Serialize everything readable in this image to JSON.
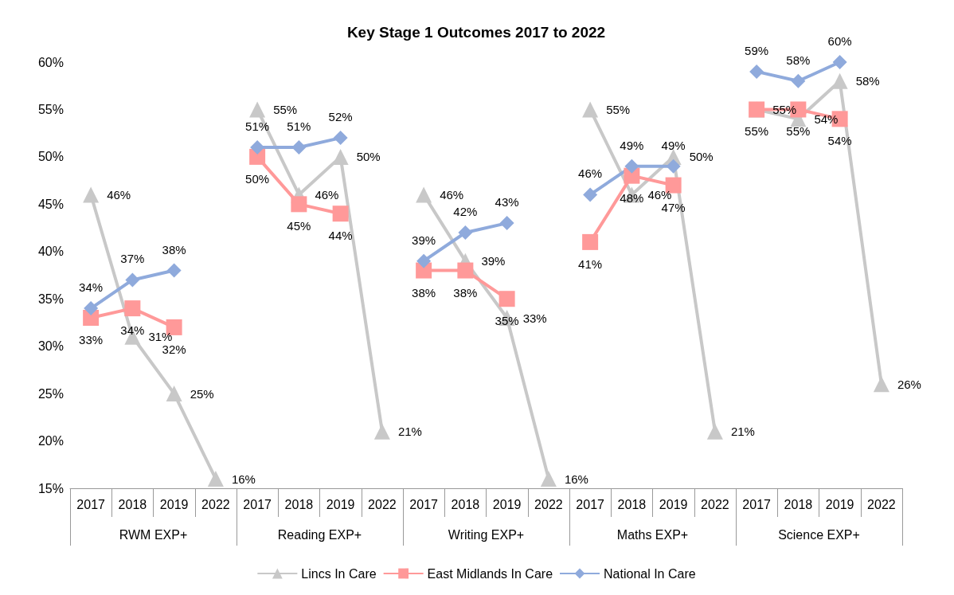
{
  "chart_data": {
    "type": "line",
    "title": "Key Stage 1 Outcomes 2017 to 2022",
    "categories": [
      "2017",
      "2018",
      "2019",
      "2022",
      "2017",
      "2018",
      "2019",
      "2022",
      "2017",
      "2018",
      "2019",
      "2022",
      "2017",
      "2018",
      "2019",
      "2022",
      "2017",
      "2018",
      "2019",
      "2022"
    ],
    "annotations": [
      "RWM EXP+",
      "Reading EXP+",
      "Writing EXP+",
      "Maths EXP+",
      "Science EXP+"
    ],
    "ylim": [
      15,
      60
    ],
    "yticks": [
      {
        "value": 15,
        "label": "15%"
      },
      {
        "value": 20,
        "label": "20%"
      },
      {
        "value": 25,
        "label": "25%"
      },
      {
        "value": 30,
        "label": "30%"
      },
      {
        "value": 35,
        "label": "35%"
      },
      {
        "value": 40,
        "label": "40%"
      },
      {
        "value": 45,
        "label": "45%"
      },
      {
        "value": 50,
        "label": "50%"
      },
      {
        "value": 55,
        "label": "55%"
      },
      {
        "value": 60,
        "label": "60%"
      }
    ],
    "grid": false,
    "legend": "bottom",
    "line_style": "solid",
    "series": [
      {
        "name": "Lincs In Care",
        "color": "#c8c8c8",
        "marker": "triangle",
        "values": [
          46,
          31,
          25,
          16,
          null,
          null,
          null,
          null,
          null,
          null,
          null,
          null,
          null,
          null,
          null,
          null,
          null,
          null,
          null,
          null
        ],
        "value_labels": [
          "46%",
          "31%",
          "25%",
          "16%",
          null,
          null,
          null,
          null,
          null,
          null,
          null,
          null,
          null,
          null,
          null,
          null,
          null,
          null,
          null,
          null
        ]
      },
      {
        "color": "#c8c8c8",
        "marker": "triangle",
        "values": [
          null,
          null,
          null,
          null,
          55,
          46,
          50,
          21,
          null,
          null,
          null,
          null,
          null,
          null,
          null,
          null,
          null,
          null,
          null,
          null
        ],
        "value_labels": [
          null,
          null,
          null,
          null,
          "55%",
          "46%",
          "50%",
          "21%",
          null,
          null,
          null,
          null,
          null,
          null,
          null,
          null,
          null,
          null,
          null,
          null
        ]
      },
      {
        "color": "#c8c8c8",
        "marker": "triangle",
        "values": [
          null,
          null,
          null,
          null,
          null,
          null,
          null,
          null,
          46,
          39,
          33,
          16,
          null,
          null,
          null,
          null,
          null,
          null,
          null,
          null
        ],
        "value_labels": [
          null,
          null,
          null,
          null,
          null,
          null,
          null,
          null,
          "46%",
          "39%",
          "33%",
          "16%",
          null,
          null,
          null,
          null,
          null,
          null,
          null,
          null
        ]
      },
      {
        "color": "#c8c8c8",
        "marker": "triangle",
        "values": [
          null,
          null,
          null,
          null,
          null,
          null,
          null,
          null,
          null,
          null,
          null,
          null,
          55,
          46,
          50,
          21,
          null,
          null,
          null,
          null
        ],
        "value_labels": [
          null,
          null,
          null,
          null,
          null,
          null,
          null,
          null,
          null,
          null,
          null,
          null,
          "55%",
          "46%",
          "50%",
          "21%",
          null,
          null,
          null,
          null
        ]
      },
      {
        "color": "#c8c8c8",
        "marker": "triangle",
        "values": [
          null,
          null,
          null,
          null,
          null,
          null,
          null,
          null,
          null,
          null,
          null,
          null,
          null,
          null,
          null,
          null,
          55,
          54,
          58,
          26
        ],
        "value_labels": [
          null,
          null,
          null,
          null,
          null,
          null,
          null,
          null,
          null,
          null,
          null,
          null,
          null,
          null,
          null,
          null,
          "55%",
          "54%",
          "58%",
          "26%"
        ]
      },
      {
        "name": "East Midlands In Care",
        "color": "#ff9999",
        "marker": "square",
        "values": [
          33,
          34,
          32,
          null,
          null,
          null,
          null,
          null,
          null,
          null,
          null,
          null,
          null,
          null,
          null,
          null,
          null,
          null,
          null,
          null
        ],
        "value_labels": [
          "33%",
          "34%",
          "32%",
          null,
          null,
          null,
          null,
          null,
          null,
          null,
          null,
          null,
          null,
          null,
          null,
          null,
          null,
          null,
          null,
          null
        ]
      },
      {
        "color": "#ff9999",
        "marker": "square",
        "values": [
          null,
          null,
          null,
          null,
          50,
          45,
          44,
          null,
          null,
          null,
          null,
          null,
          null,
          null,
          null,
          null,
          null,
          null,
          null,
          null
        ],
        "value_labels": [
          null,
          null,
          null,
          null,
          "50%",
          "45%",
          "44%",
          null,
          null,
          null,
          null,
          null,
          null,
          null,
          null,
          null,
          null,
          null,
          null,
          null
        ]
      },
      {
        "color": "#ff9999",
        "marker": "square",
        "values": [
          null,
          null,
          null,
          null,
          null,
          null,
          null,
          null,
          38,
          38,
          35,
          null,
          null,
          null,
          null,
          null,
          null,
          null,
          null,
          null
        ],
        "value_labels": [
          null,
          null,
          null,
          null,
          null,
          null,
          null,
          null,
          "38%",
          "38%",
          "35%",
          null,
          null,
          null,
          null,
          null,
          null,
          null,
          null,
          null
        ]
      },
      {
        "color": "#ff9999",
        "marker": "square",
        "values": [
          null,
          null,
          null,
          null,
          null,
          null,
          null,
          null,
          null,
          null,
          null,
          null,
          41,
          48,
          47,
          null,
          null,
          null,
          null,
          null
        ],
        "value_labels": [
          null,
          null,
          null,
          null,
          null,
          null,
          null,
          null,
          null,
          null,
          null,
          null,
          "41%",
          "48%",
          "47%",
          null,
          null,
          null,
          null,
          null
        ]
      },
      {
        "color": "#ff9999",
        "marker": "square",
        "values": [
          null,
          null,
          null,
          null,
          null,
          null,
          null,
          null,
          null,
          null,
          null,
          null,
          null,
          null,
          null,
          null,
          55,
          55,
          54,
          null
        ],
        "value_labels": [
          null,
          null,
          null,
          null,
          null,
          null,
          null,
          null,
          null,
          null,
          null,
          null,
          null,
          null,
          null,
          null,
          "55%",
          "55%",
          "54%",
          null
        ]
      },
      {
        "name": "National In Care",
        "color": "#8faadc",
        "marker": "diamond",
        "values": [
          34,
          37,
          38,
          null,
          null,
          null,
          null,
          null,
          null,
          null,
          null,
          null,
          null,
          null,
          null,
          null,
          null,
          null,
          null,
          null
        ],
        "value_labels": [
          "34%",
          "37%",
          "38%",
          null,
          null,
          null,
          null,
          null,
          null,
          null,
          null,
          null,
          null,
          null,
          null,
          null,
          null,
          null,
          null,
          null
        ]
      },
      {
        "color": "#8faadc",
        "marker": "diamond",
        "values": [
          null,
          null,
          null,
          null,
          51,
          51,
          52,
          null,
          null,
          null,
          null,
          null,
          null,
          null,
          null,
          null,
          null,
          null,
          null,
          null
        ],
        "value_labels": [
          null,
          null,
          null,
          null,
          "51%",
          "51%",
          "52%",
          null,
          null,
          null,
          null,
          null,
          null,
          null,
          null,
          null,
          null,
          null,
          null,
          null
        ]
      },
      {
        "color": "#8faadc",
        "marker": "diamond",
        "values": [
          null,
          null,
          null,
          null,
          null,
          null,
          null,
          null,
          39,
          42,
          43,
          null,
          null,
          null,
          null,
          null,
          null,
          null,
          null,
          null
        ],
        "value_labels": [
          null,
          null,
          null,
          null,
          null,
          null,
          null,
          null,
          "39%",
          "42%",
          "43%",
          null,
          null,
          null,
          null,
          null,
          null,
          null,
          null,
          null
        ]
      },
      {
        "color": "#8faadc",
        "marker": "diamond",
        "values": [
          null,
          null,
          null,
          null,
          null,
          null,
          null,
          null,
          null,
          null,
          null,
          null,
          46,
          49,
          49,
          null,
          null,
          null,
          null,
          null
        ],
        "value_labels": [
          null,
          null,
          null,
          null,
          null,
          null,
          null,
          null,
          null,
          null,
          null,
          null,
          "46%",
          "49%",
          "49%",
          null,
          null,
          null,
          null,
          null
        ]
      },
      {
        "color": "#8faadc",
        "marker": "diamond",
        "values": [
          null,
          null,
          null,
          null,
          null,
          null,
          null,
          null,
          null,
          null,
          null,
          null,
          null,
          null,
          null,
          null,
          59,
          58,
          60,
          null
        ],
        "value_labels": [
          null,
          null,
          null,
          null,
          null,
          null,
          null,
          null,
          null,
          null,
          null,
          null,
          null,
          null,
          null,
          null,
          "59%",
          "58%",
          "60%",
          null
        ]
      }
    ]
  }
}
